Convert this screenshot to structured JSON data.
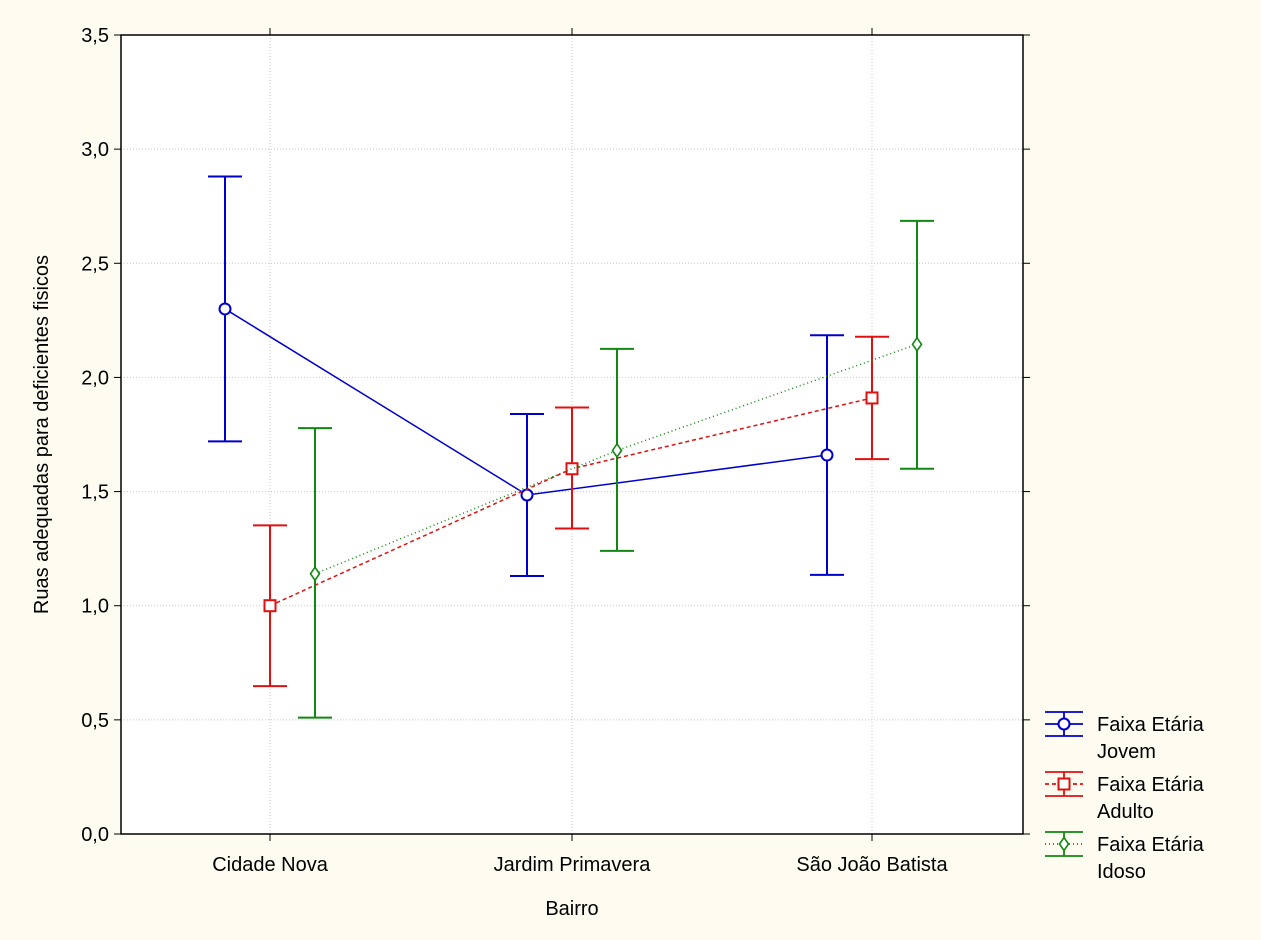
{
  "chart_data": {
    "type": "line",
    "xlabel": "Bairro",
    "ylabel": "Ruas adequadas para deficientes fisicos",
    "categories": [
      "Cidade Nova",
      "Jardim Primavera",
      "São João Batista"
    ],
    "ylim": [
      0,
      3.5
    ],
    "yticks": [
      "0,0",
      "0,5",
      "1,0",
      "1,5",
      "2,0",
      "2,5",
      "3,0",
      "3,5"
    ],
    "grid": true,
    "legend_position": "bottom-right",
    "series": [
      {
        "name_line1": "Faixa Etária",
        "name_line2": "Jovem",
        "color": "#0000CC",
        "marker": "circle",
        "line_style": "solid",
        "values": [
          2.3,
          1.485,
          1.66
        ],
        "lower": [
          1.72,
          1.13,
          1.135
        ],
        "upper": [
          2.88,
          1.84,
          2.185
        ]
      },
      {
        "name_line1": "Faixa Etária",
        "name_line2": "Adulto",
        "color": "#E01010",
        "marker": "square",
        "line_style": "dashed",
        "values": [
          1.0,
          1.6,
          1.91
        ],
        "lower": [
          0.648,
          1.338,
          1.642
        ],
        "upper": [
          1.352,
          1.868,
          2.178
        ]
      },
      {
        "name_line1": "Faixa Etária",
        "name_line2": "Idoso",
        "color": "#118811",
        "marker": "diamond",
        "line_style": "dotted",
        "values": [
          1.14,
          1.68,
          2.145
        ],
        "lower": [
          0.51,
          1.24,
          1.6
        ],
        "upper": [
          1.778,
          2.125,
          2.686
        ]
      }
    ]
  }
}
